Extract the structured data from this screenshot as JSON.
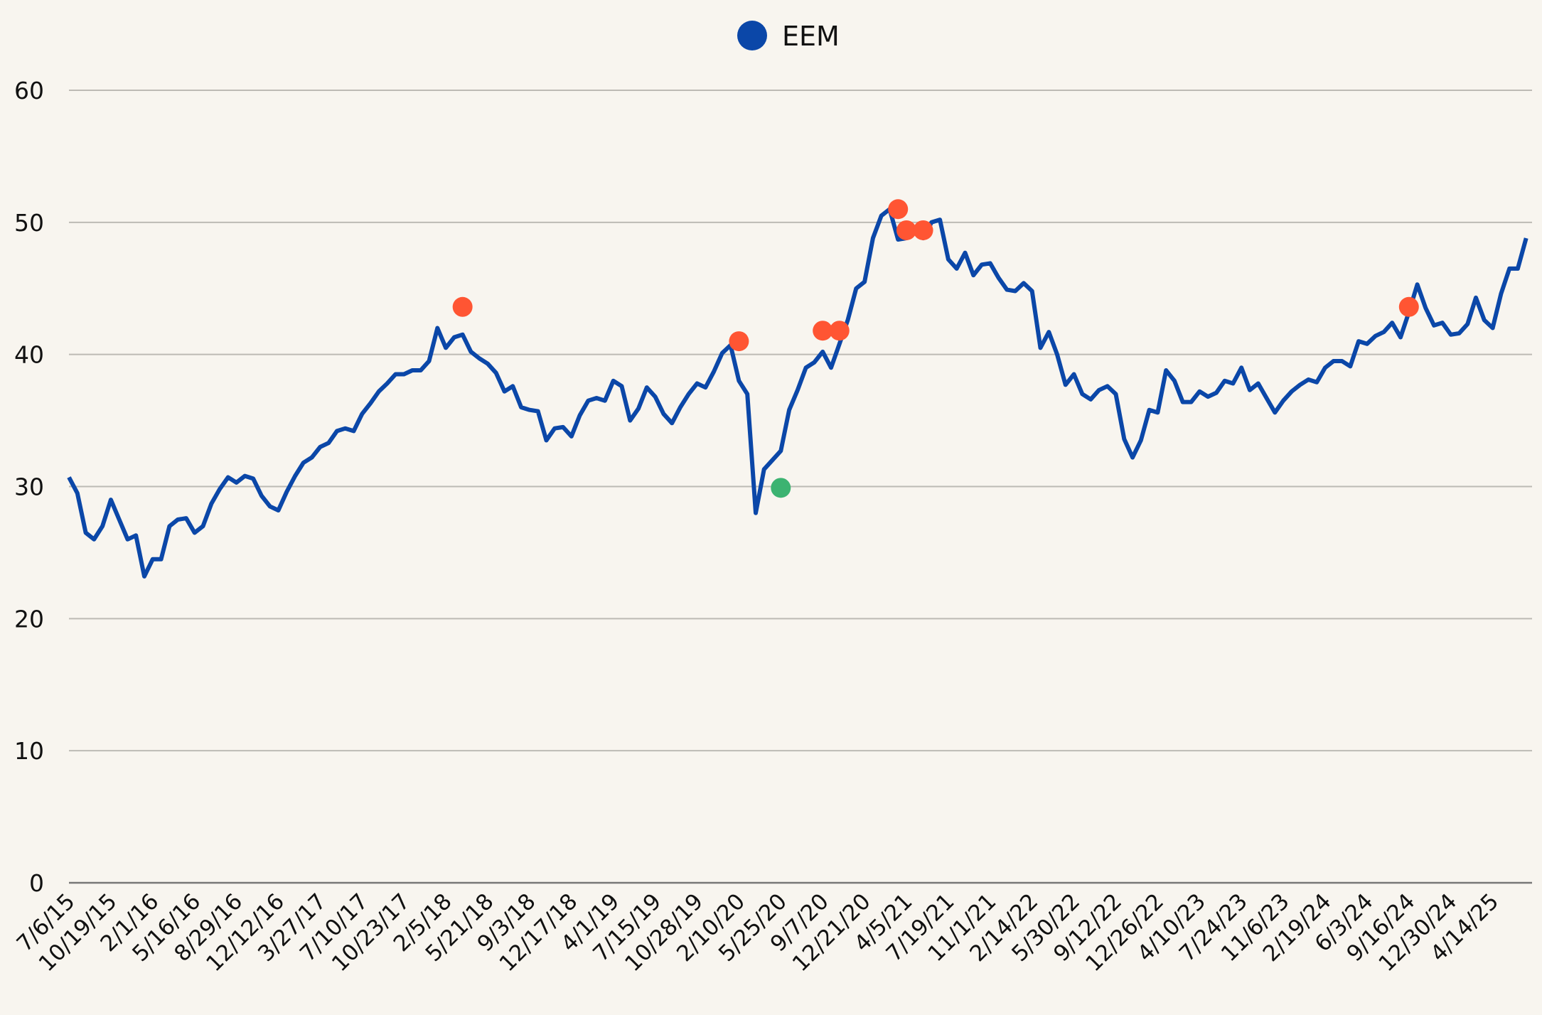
{
  "chart_data": {
    "type": "line",
    "categories": [
      "7/6/15",
      null,
      null,
      null,
      null,
      "10/19/15",
      null,
      null,
      null,
      null,
      "2/1/16",
      null,
      null,
      null,
      null,
      "5/16/16",
      null,
      null,
      null,
      null,
      "8/29/16",
      null,
      null,
      null,
      null,
      "12/12/16",
      null,
      null,
      null,
      null,
      "3/27/17",
      null,
      null,
      null,
      null,
      "7/10/17",
      null,
      null,
      null,
      null,
      "10/23/17",
      null,
      null,
      null,
      null,
      "2/5/18",
      null,
      null,
      null,
      null,
      "5/21/18",
      null,
      null,
      null,
      null,
      "9/3/18",
      null,
      null,
      null,
      null,
      "12/17/18",
      null,
      null,
      null,
      null,
      "4/1/19",
      null,
      null,
      null,
      null,
      "7/15/19",
      null,
      null,
      null,
      null,
      "10/28/19",
      null,
      null,
      null,
      null,
      "2/10/20",
      null,
      null,
      null,
      null,
      "5/25/20",
      null,
      null,
      null,
      null,
      "9/7/20",
      null,
      null,
      null,
      null,
      "12/21/20",
      null,
      null,
      null,
      null,
      "4/5/21",
      null,
      null,
      null,
      null,
      "7/19/21",
      null,
      null,
      null,
      null,
      "11/1/21",
      null,
      null,
      null,
      null,
      "2/14/22",
      null,
      null,
      null,
      null,
      "5/30/22",
      null,
      null,
      null,
      null,
      "9/12/22",
      null,
      null,
      null,
      null,
      "12/26/22",
      null,
      null,
      null,
      null,
      "4/10/23",
      null,
      null,
      null,
      null,
      "7/24/23",
      null,
      null,
      null,
      null,
      "11/6/23",
      null,
      null,
      null,
      null,
      "2/19/24",
      null,
      null,
      null,
      null,
      "6/3/24",
      null,
      null,
      null,
      null,
      "9/16/24",
      null,
      null,
      null,
      null,
      "12/30/24",
      null,
      null,
      null,
      null,
      "4/14/25",
      null,
      null,
      null,
      null
    ],
    "series": [
      {
        "name": "EEM",
        "color": "#0b47a8",
        "values": [
          30.7,
          29.5,
          26.5,
          26,
          27,
          29,
          27.5,
          26,
          26.3,
          23.2,
          24.5,
          24.5,
          27,
          27.5,
          27.6,
          26.5,
          27,
          28.7,
          29.8,
          30.7,
          30.3,
          30.8,
          30.6,
          29.3,
          28.5,
          28.2,
          29.6,
          30.8,
          31.8,
          32.2,
          33,
          33.3,
          34.2,
          34.4,
          34.2,
          35.5,
          36.3,
          37.2,
          37.8,
          38.5,
          38.5,
          38.8,
          38.8,
          39.5,
          42,
          40.5,
          41.3,
          41.5,
          40.2,
          39.7,
          39.3,
          38.6,
          37.2,
          37.6,
          36,
          35.8,
          35.7,
          33.5,
          34.4,
          34.5,
          33.8,
          35.4,
          36.5,
          36.7,
          36.5,
          38,
          37.6,
          35,
          35.9,
          37.5,
          36.8,
          35.5,
          34.8,
          36,
          37,
          37.8,
          37.5,
          38.7,
          40.1,
          40.7,
          38,
          37,
          28,
          31.3,
          32,
          32.7,
          35.8,
          37.3,
          39,
          39.4,
          40.2,
          39,
          40.8,
          42.6,
          45,
          45.5,
          48.8,
          50.5,
          51,
          48.7,
          48.8,
          49.5,
          48.8,
          50,
          50.2,
          47.2,
          46.5,
          47.7,
          46,
          46.8,
          46.9,
          45.8,
          44.9,
          44.8,
          45.4,
          44.8,
          40.5,
          41.7,
          40,
          37.7,
          38.5,
          37,
          36.6,
          37.3,
          37.6,
          37,
          33.6,
          32.2,
          33.5,
          35.8,
          35.6,
          38.8,
          38,
          36.4,
          36.4,
          37.2,
          36.8,
          37.1,
          38,
          37.8,
          39,
          37.3,
          37.8,
          36.7,
          35.6,
          36.5,
          37.2,
          37.7,
          38.1,
          37.9,
          39,
          39.5,
          39.5,
          39.1,
          41,
          40.8,
          41.4,
          41.7,
          42.4,
          41.3,
          43.2,
          45.3,
          43.5,
          42.2,
          42.4,
          41.5,
          41.6,
          42.3,
          44.3,
          42.6,
          42,
          44.6,
          46.5,
          46.5,
          48.8
        ]
      }
    ],
    "markers": {
      "x": [
        47,
        80,
        85,
        90,
        92,
        99,
        100,
        102,
        160
      ],
      "values": [
        43.6,
        41,
        29.9,
        41.8,
        41.8,
        51,
        49.4,
        49.4,
        43.6
      ],
      "colors": [
        "#ff5533",
        "#ff5533",
        "#3cb371",
        "#ff5533",
        "#ff5533",
        "#ff5533",
        "#ff5533",
        "#ff5533",
        "#ff5533"
      ]
    },
    "ylim": [
      0,
      60
    ],
    "yticks": [
      0,
      10,
      20,
      30,
      40,
      50,
      60
    ],
    "grid": true,
    "legend": "top"
  }
}
